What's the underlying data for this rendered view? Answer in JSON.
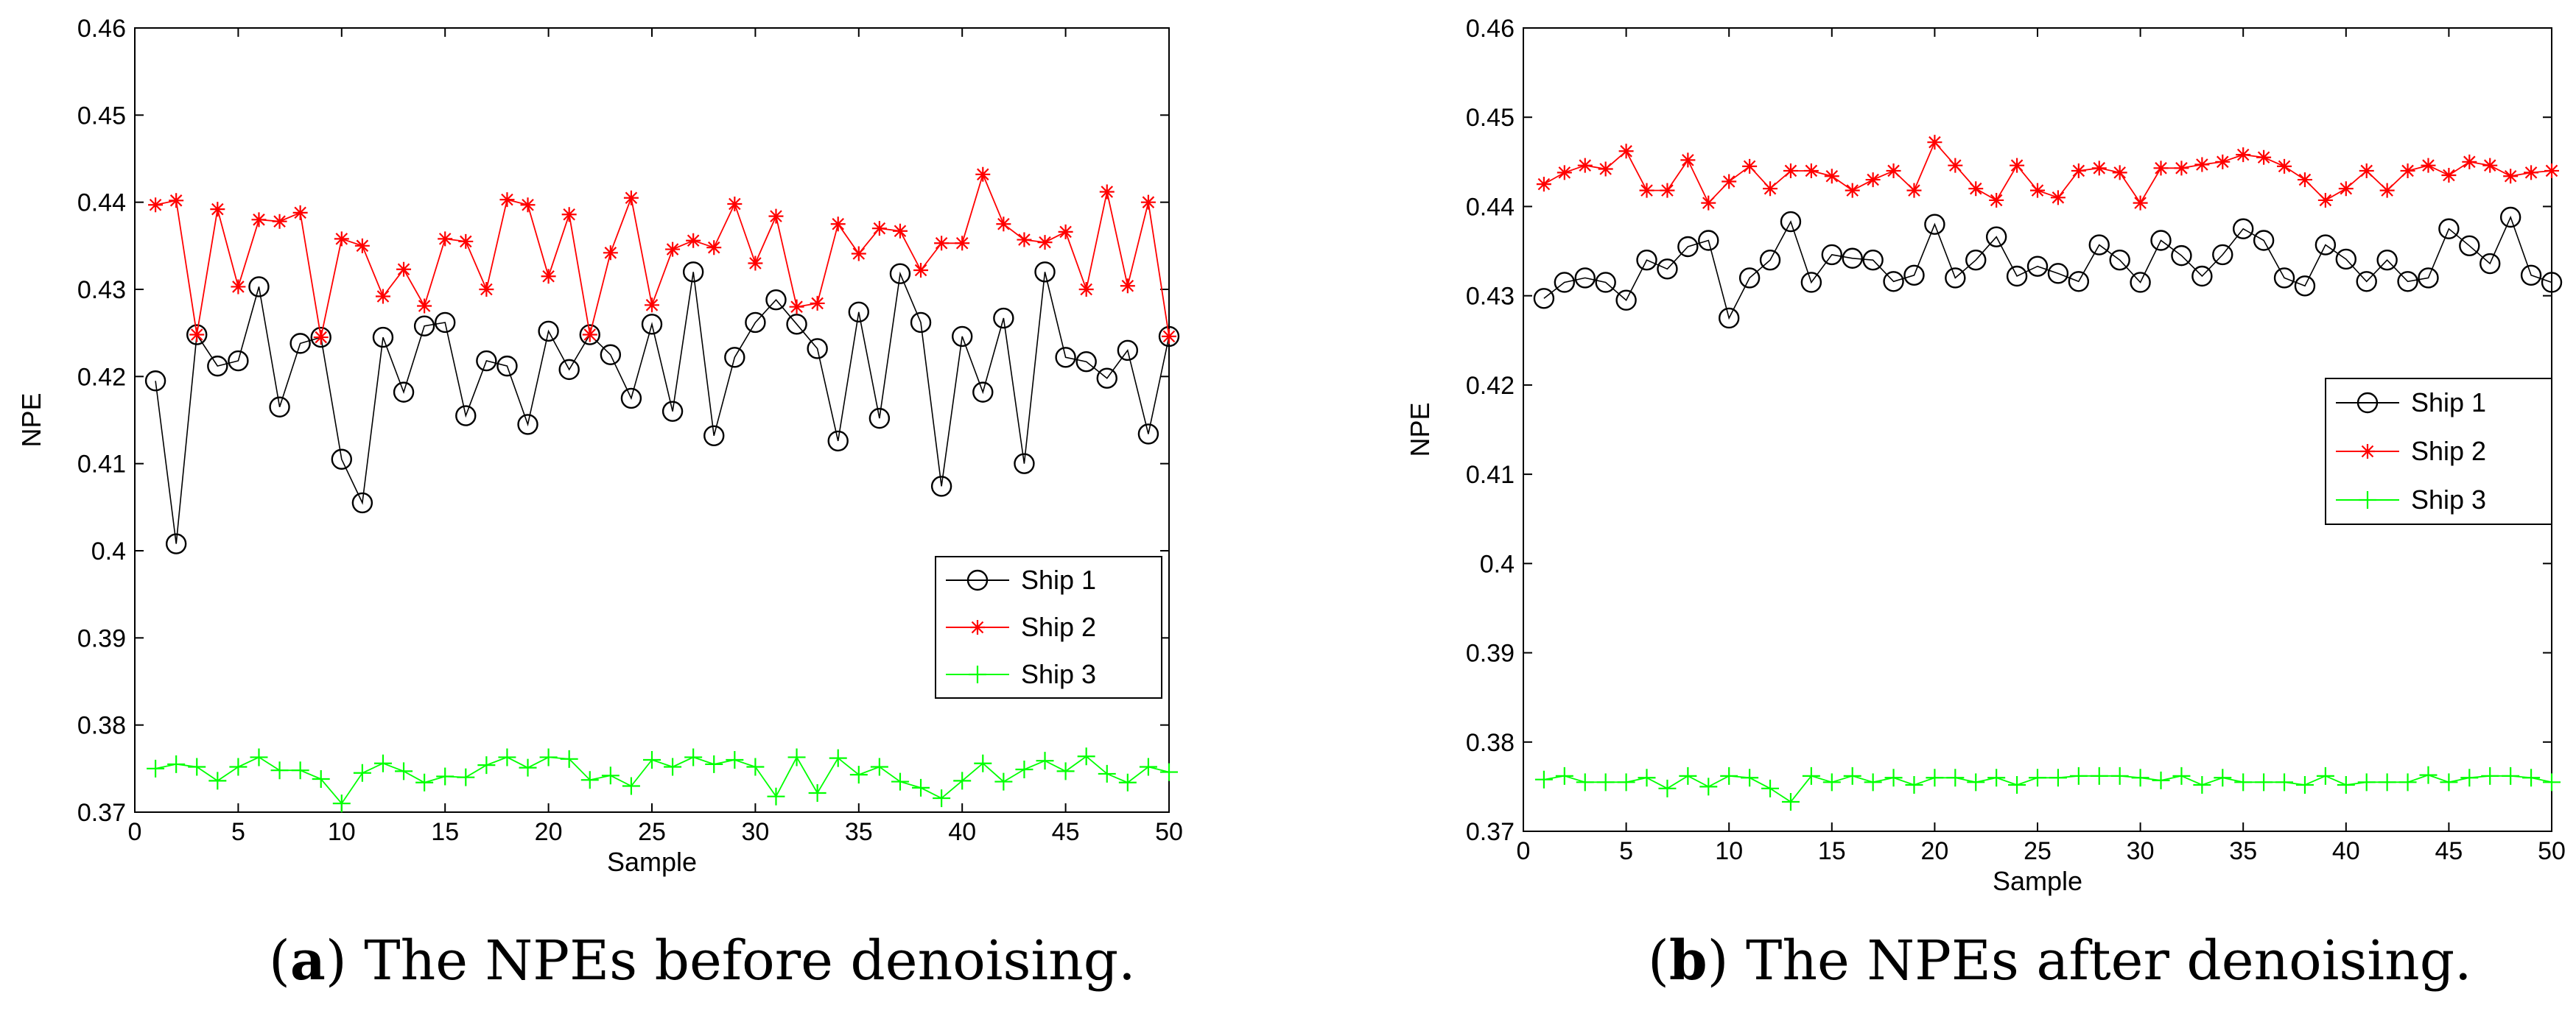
{
  "chart_data": [
    {
      "type": "line",
      "xlabel": "Sample",
      "ylabel": "NPE",
      "xlim": [
        0,
        50
      ],
      "ylim": [
        0.37,
        0.46
      ],
      "xticks": [
        0,
        5,
        10,
        15,
        20,
        25,
        30,
        35,
        40,
        45,
        50
      ],
      "yticks": [
        0.37,
        0.38,
        0.39,
        0.4,
        0.41,
        0.42,
        0.43,
        0.44,
        0.45,
        0.46
      ],
      "ytick_labels": [
        "0.37",
        "0.38",
        "0.39",
        "0.4",
        "0.41",
        "0.42",
        "0.43",
        "0.44",
        "0.45",
        "0.46"
      ],
      "legend_position": "center-right",
      "series": [
        {
          "name": "Ship 1",
          "color": "#000000",
          "marker": "circle",
          "values": [
            0.4195,
            0.4008,
            0.4248,
            0.4212,
            0.4218,
            0.4303,
            0.4165,
            0.4238,
            0.4245,
            0.4105,
            0.4055,
            0.4245,
            0.4182,
            0.4258,
            0.4262,
            0.4155,
            0.4218,
            0.4212,
            0.4145,
            0.4252,
            0.4208,
            0.4248,
            0.4225,
            0.4175,
            0.426,
            0.416,
            0.432,
            0.4132,
            0.4222,
            0.4262,
            0.4288,
            0.426,
            0.4232,
            0.4126,
            0.4274,
            0.4152,
            0.4318,
            0.4262,
            0.4074,
            0.4246,
            0.4182,
            0.4267,
            0.41,
            0.432,
            0.4222,
            0.4217,
            0.4198,
            0.423,
            0.4134,
            0.4246
          ]
        },
        {
          "name": "Ship 2",
          "color": "#ff0000",
          "marker": "star",
          "values": [
            0.4397,
            0.4402,
            0.4248,
            0.4392,
            0.4303,
            0.438,
            0.4378,
            0.4388,
            0.4245,
            0.4358,
            0.435,
            0.4292,
            0.4323,
            0.4281,
            0.4358,
            0.4355,
            0.43,
            0.4403,
            0.4397,
            0.4315,
            0.4386,
            0.4248,
            0.4342,
            0.4405,
            0.4282,
            0.4346,
            0.4356,
            0.4348,
            0.4398,
            0.433,
            0.4384,
            0.428,
            0.4284,
            0.4375,
            0.4341,
            0.437,
            0.4367,
            0.4322,
            0.4353,
            0.4353,
            0.4432,
            0.4375,
            0.4357,
            0.4354,
            0.4366,
            0.43,
            0.4412,
            0.4304,
            0.44,
            0.4246
          ]
        },
        {
          "name": "Ship 3",
          "color": "#00ff00",
          "marker": "plus",
          "values": [
            0.375,
            0.3755,
            0.3752,
            0.3736,
            0.3752,
            0.3763,
            0.3748,
            0.3748,
            0.3738,
            0.371,
            0.3745,
            0.3756,
            0.3747,
            0.3734,
            0.3741,
            0.374,
            0.3754,
            0.3763,
            0.3751,
            0.3763,
            0.3761,
            0.3737,
            0.3742,
            0.373,
            0.376,
            0.3752,
            0.3763,
            0.3755,
            0.376,
            0.3752,
            0.3718,
            0.3763,
            0.3722,
            0.3762,
            0.3743,
            0.3752,
            0.3735,
            0.3728,
            0.3716,
            0.3736,
            0.3756,
            0.3735,
            0.3749,
            0.3759,
            0.3747,
            0.3764,
            0.3744,
            0.3734,
            0.3752,
            0.3746
          ]
        }
      ]
    },
    {
      "type": "line",
      "xlabel": "Sample",
      "ylabel": "NPE",
      "xlim": [
        0,
        50
      ],
      "ylim": [
        0.37,
        0.46
      ],
      "xticks": [
        0,
        5,
        10,
        15,
        20,
        25,
        30,
        35,
        40,
        45,
        50
      ],
      "yticks": [
        0.37,
        0.38,
        0.39,
        0.4,
        0.41,
        0.42,
        0.43,
        0.44,
        0.45,
        0.46
      ],
      "ytick_labels": [
        "0.37",
        "0.38",
        "0.39",
        "0.4",
        "0.41",
        "0.42",
        "0.43",
        "0.44",
        "0.45",
        "0.46"
      ],
      "legend_position": "upper-right",
      "series": [
        {
          "name": "Ship 1",
          "color": "#000000",
          "marker": "circle",
          "values": [
            0.4297,
            0.4315,
            0.432,
            0.4315,
            0.4295,
            0.434,
            0.433,
            0.4355,
            0.4362,
            0.4275,
            0.432,
            0.434,
            0.4383,
            0.4315,
            0.4346,
            0.4342,
            0.434,
            0.4316,
            0.4323,
            0.438,
            0.432,
            0.434,
            0.4366,
            0.4322,
            0.4333,
            0.4325,
            0.4316,
            0.4357,
            0.434,
            0.4315,
            0.4362,
            0.4345,
            0.4322,
            0.4346,
            0.4375,
            0.4362,
            0.432,
            0.4311,
            0.4357,
            0.4341,
            0.4316,
            0.434,
            0.4316,
            0.432,
            0.4375,
            0.4356,
            0.4336,
            0.4388,
            0.4323,
            0.4315
          ]
        },
        {
          "name": "Ship 2",
          "color": "#ff0000",
          "marker": "star",
          "values": [
            0.4425,
            0.4438,
            0.4446,
            0.4442,
            0.4462,
            0.4418,
            0.4418,
            0.4452,
            0.4404,
            0.4428,
            0.4445,
            0.442,
            0.444,
            0.444,
            0.4434,
            0.4418,
            0.443,
            0.444,
            0.4418,
            0.4472,
            0.4446,
            0.442,
            0.4407,
            0.4446,
            0.4418,
            0.441,
            0.444,
            0.4443,
            0.4438,
            0.4404,
            0.4443,
            0.4443,
            0.4447,
            0.445,
            0.4458,
            0.4455,
            0.4445,
            0.443,
            0.4407,
            0.442,
            0.444,
            0.4418,
            0.444,
            0.4446,
            0.4435,
            0.445,
            0.4446,
            0.4434,
            0.4438,
            0.444
          ]
        },
        {
          "name": "Ship 3",
          "color": "#00ff00",
          "marker": "plus",
          "values": [
            0.3758,
            0.3762,
            0.3755,
            0.3755,
            0.3755,
            0.376,
            0.3748,
            0.3762,
            0.375,
            0.3762,
            0.376,
            0.3748,
            0.3733,
            0.3762,
            0.3755,
            0.3762,
            0.3755,
            0.376,
            0.3752,
            0.376,
            0.376,
            0.3755,
            0.376,
            0.3752,
            0.376,
            0.376,
            0.3762,
            0.3762,
            0.3762,
            0.376,
            0.3757,
            0.3762,
            0.3752,
            0.376,
            0.3755,
            0.3755,
            0.3755,
            0.3752,
            0.3762,
            0.3752,
            0.3755,
            0.3755,
            0.3755,
            0.3763,
            0.3755,
            0.376,
            0.3762,
            0.3762,
            0.376,
            0.3755
          ]
        }
      ]
    }
  ],
  "captions": {
    "a": {
      "label": "a",
      "text": " The NPEs before denoising."
    },
    "b": {
      "label": "b",
      "text": " The NPEs after denoising."
    }
  }
}
